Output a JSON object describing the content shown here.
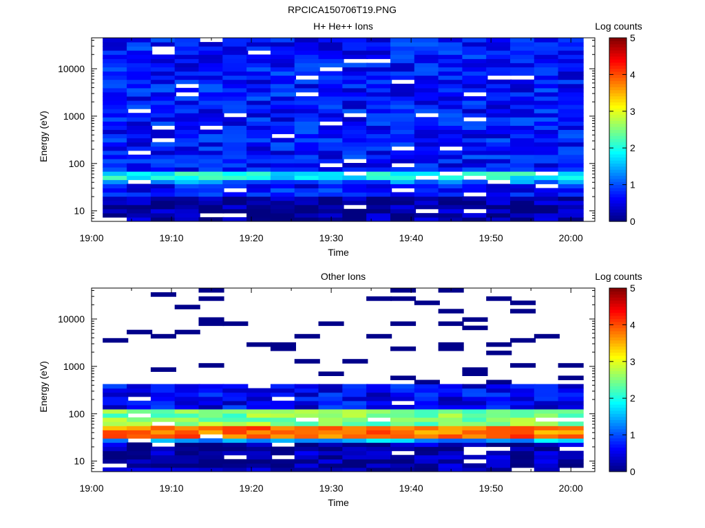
{
  "figure": {
    "title": "RPCICA150706T19.PNG"
  },
  "chart_data": [
    {
      "type": "heatmap",
      "title": "H+ He++ Ions",
      "xlabel": "Time",
      "ylabel": "Energy (eV)",
      "x_ticks": [
        "19:00",
        "19:10",
        "19:20",
        "19:30",
        "19:40",
        "19:50",
        "20:00"
      ],
      "xlim": [
        "19:00",
        "20:03"
      ],
      "y_scale": "log",
      "y_ticks": [
        10,
        100,
        1000,
        10000
      ],
      "ylim": [
        6,
        45000
      ],
      "time_bins": [
        "19:03",
        "19:06",
        "19:09",
        "19:12",
        "19:15",
        "19:18",
        "19:21",
        "19:24",
        "19:27",
        "19:30",
        "19:33",
        "19:36",
        "19:39",
        "19:42",
        "19:45",
        "19:48",
        "19:51",
        "19:54",
        "19:57",
        "20:00"
      ],
      "colorbar": {
        "label": "Log counts",
        "ticks": [
          0,
          1,
          2,
          3,
          4,
          5
        ],
        "range": [
          0,
          5
        ],
        "colormap": "jet"
      },
      "bands_log_counts": [
        {
          "energy_range_eV": [
            6,
            20
          ],
          "log_counts": 0.15
        },
        {
          "energy_range_eV": [
            20,
            35
          ],
          "log_counts": 0.7
        },
        {
          "energy_range_eV": [
            35,
            45
          ],
          "log_counts": 1.2
        },
        {
          "energy_range_eV": [
            45,
            65
          ],
          "log_counts": 1.9
        },
        {
          "energy_range_eV": [
            65,
            45000
          ],
          "log_counts": 0.7
        }
      ]
    },
    {
      "type": "heatmap",
      "title": "Other Ions",
      "xlabel": "Time",
      "ylabel": "Energy (eV)",
      "x_ticks": [
        "19:00",
        "19:10",
        "19:20",
        "19:30",
        "19:40",
        "19:50",
        "20:00"
      ],
      "xlim": [
        "19:00",
        "20:03"
      ],
      "y_scale": "log",
      "y_ticks": [
        10,
        100,
        1000,
        10000
      ],
      "ylim": [
        6,
        45000
      ],
      "time_bins": [
        "19:03",
        "19:06",
        "19:09",
        "19:12",
        "19:15",
        "19:18",
        "19:21",
        "19:24",
        "19:27",
        "19:30",
        "19:33",
        "19:36",
        "19:39",
        "19:42",
        "19:45",
        "19:48",
        "19:51",
        "19:54",
        "19:57",
        "20:00"
      ],
      "colorbar": {
        "label": "Log counts",
        "ticks": [
          0,
          1,
          2,
          3,
          4,
          5
        ],
        "range": [
          0,
          5
        ],
        "colormap": "jet"
      },
      "bands_log_counts": [
        {
          "energy_range_eV": [
            6,
            25
          ],
          "log_counts": 0.2
        },
        {
          "energy_range_eV": [
            25,
            32
          ],
          "log_counts": 1.5
        },
        {
          "energy_range_eV": [
            32,
            55
          ],
          "log_counts": 3.8
        },
        {
          "energy_range_eV": [
            55,
            120
          ],
          "log_counts": 2.5
        },
        {
          "energy_range_eV": [
            120,
            400
          ],
          "log_counts": 0.6
        },
        {
          "energy_range_eV": [
            400,
            45000
          ],
          "log_counts": 0.1
        }
      ]
    }
  ]
}
